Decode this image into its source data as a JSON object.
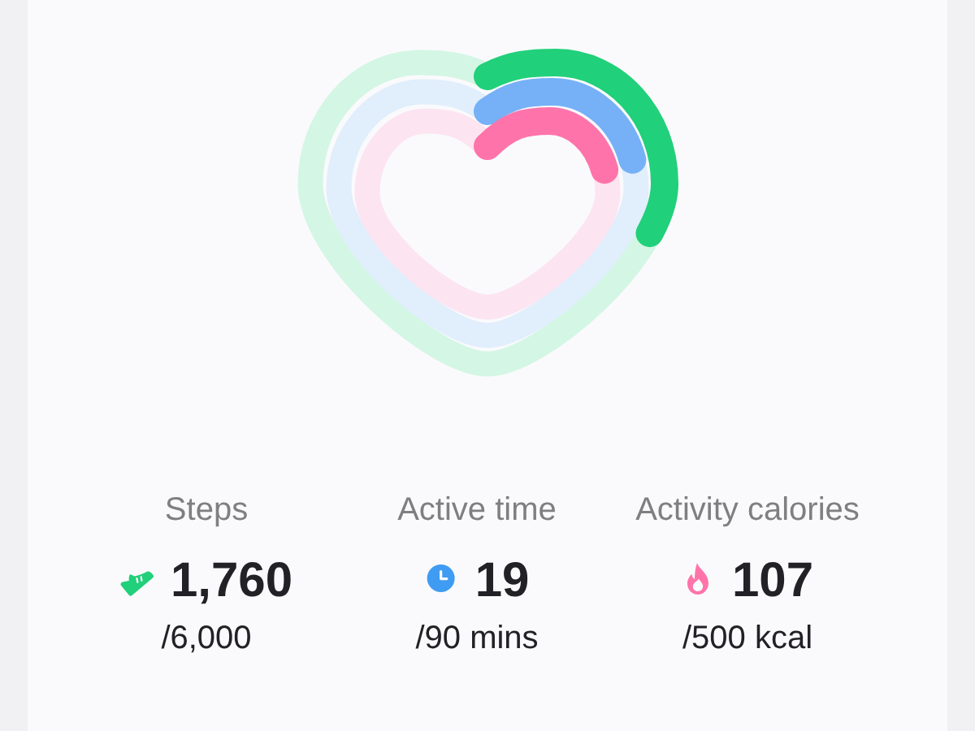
{
  "chart_data": {
    "type": "other",
    "categories": [
      "Steps",
      "Active time",
      "Activity calories"
    ],
    "series": [
      {
        "values": [
          1760,
          19,
          107
        ],
        "value_labels": [
          "1,760",
          "19",
          "107"
        ],
        "colors": [
          "#21d07a",
          "#76b1f7",
          "#ff73ab"
        ]
      },
      {
        "values": [
          6000,
          90,
          500
        ],
        "value_labels": [
          "/6,000",
          "/90 mins",
          "/500 kcal"
        ],
        "colors": [
          "#d4f6e5",
          "#e1eefc",
          "#fce4f0"
        ]
      }
    ]
  }
}
